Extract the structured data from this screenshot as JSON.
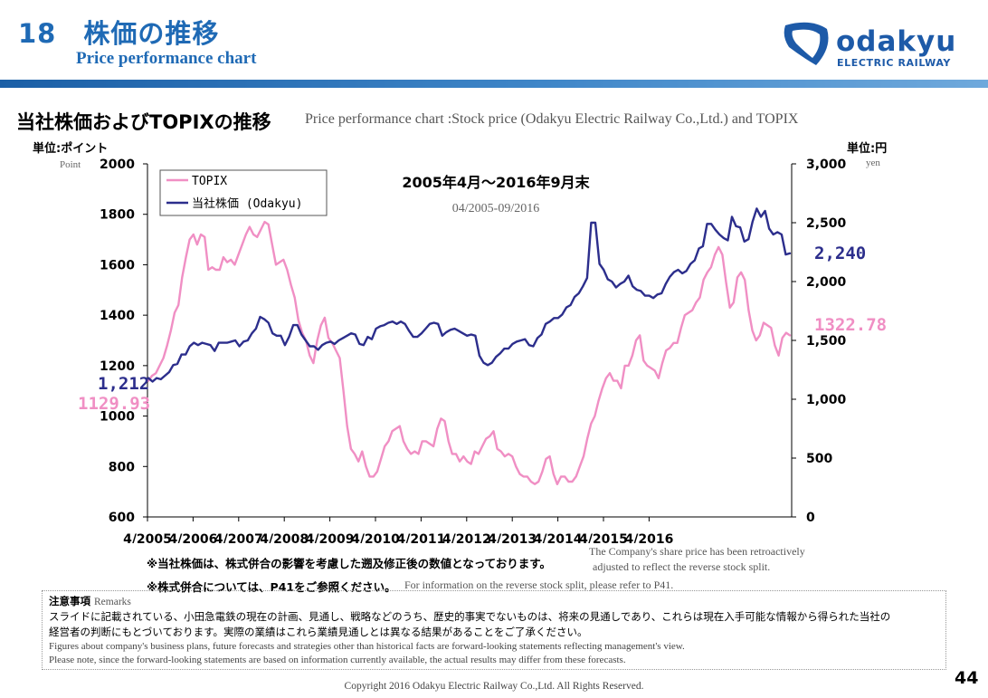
{
  "header": {
    "title": "18　株価の推移",
    "subtitle": "Price performance chart",
    "logo_word": "odakyu",
    "logo_sub": "ELECTRIC RAILWAY",
    "brand_color": "#1f6ab5"
  },
  "section": {
    "heading": "当社株価およびTOPIXの推移",
    "heading_en": "Price performance chart :Stock price (Odakyu Electric Railway Co.,Ltd.) and TOPIX",
    "left_unit_jp": "単位:ポイント",
    "left_unit_en": "Point",
    "right_unit_jp": "単位:円",
    "right_unit_en": "yen"
  },
  "chart_data": {
    "type": "line",
    "title": "2005年4月～2016年9月末",
    "subtitle": "04/2005-09/2016",
    "x_tick_labels": [
      "4/2005",
      "4/2006",
      "4/2007",
      "4/2008",
      "4/2009",
      "4/2010",
      "4/2011",
      "4/2012",
      "4/2013",
      "4/2014",
      "4/2015",
      "4/2016"
    ],
    "left_axis": {
      "label": "Point",
      "ylim": [
        600,
        2000
      ],
      "ticks": [
        "600",
        "800",
        "1000",
        "1200",
        "1400",
        "1600",
        "1800",
        "2000"
      ]
    },
    "right_axis": {
      "label": "yen",
      "ylim": [
        0,
        3000
      ],
      "ticks": [
        "0",
        "500",
        "1,000",
        "1,500",
        "2,000",
        "2,500",
        "3,000"
      ]
    },
    "legend": {
      "position": "top-left",
      "entries": [
        "TOPIX",
        "当社株価 (Odakyu)"
      ]
    },
    "series": [
      {
        "name": "TOPIX",
        "axis": "left",
        "color": "#f08fc4",
        "start_label": "1129.93",
        "end_label": "1322.78",
        "values": [
          1140,
          1160,
          1170,
          1200,
          1230,
          1280,
          1340,
          1410,
          1440,
          1550,
          1630,
          1700,
          1720,
          1680,
          1720,
          1710,
          1580,
          1590,
          1580,
          1580,
          1630,
          1610,
          1620,
          1600,
          1640,
          1680,
          1720,
          1750,
          1720,
          1710,
          1740,
          1770,
          1760,
          1680,
          1600,
          1610,
          1620,
          1580,
          1520,
          1470,
          1380,
          1330,
          1300,
          1240,
          1210,
          1300,
          1360,
          1390,
          1310,
          1290,
          1260,
          1230,
          1100,
          960,
          870,
          850,
          820,
          860,
          800,
          760,
          760,
          780,
          830,
          880,
          900,
          940,
          950,
          960,
          900,
          870,
          850,
          860,
          850,
          900,
          900,
          890,
          880,
          950,
          990,
          980,
          900,
          850,
          850,
          820,
          840,
          820,
          810,
          860,
          850,
          880,
          910,
          920,
          940,
          870,
          860,
          840,
          850,
          840,
          800,
          770,
          760,
          760,
          740,
          730,
          740,
          780,
          830,
          840,
          770,
          730,
          760,
          760,
          740,
          740,
          760,
          800,
          840,
          910,
          970,
          1000,
          1060,
          1110,
          1150,
          1170,
          1140,
          1140,
          1110,
          1200,
          1200,
          1240,
          1300,
          1320,
          1220,
          1200,
          1190,
          1180,
          1150,
          1210,
          1260,
          1270,
          1290,
          1290,
          1350,
          1400,
          1410,
          1420,
          1450,
          1470,
          1540,
          1570,
          1590,
          1640,
          1670,
          1640,
          1530,
          1430,
          1450,
          1550,
          1570,
          1540,
          1420,
          1340,
          1300,
          1320,
          1370,
          1360,
          1350,
          1280,
          1240,
          1310,
          1330,
          1320
        ]
      },
      {
        "name": "当社株価 (Odakyu)",
        "axis": "right",
        "color": "#2c2e8c",
        "start_label": "1,212",
        "end_label": "2,240",
        "values": [
          1180,
          1150,
          1180,
          1170,
          1200,
          1230,
          1290,
          1300,
          1380,
          1380,
          1450,
          1480,
          1460,
          1480,
          1470,
          1460,
          1410,
          1480,
          1480,
          1480,
          1490,
          1500,
          1450,
          1490,
          1500,
          1560,
          1600,
          1700,
          1680,
          1650,
          1560,
          1540,
          1540,
          1460,
          1530,
          1630,
          1630,
          1550,
          1500,
          1450,
          1450,
          1420,
          1460,
          1480,
          1490,
          1470,
          1500,
          1520,
          1540,
          1560,
          1550,
          1470,
          1460,
          1530,
          1510,
          1600,
          1620,
          1630,
          1650,
          1660,
          1640,
          1660,
          1640,
          1580,
          1530,
          1530,
          1560,
          1600,
          1640,
          1650,
          1640,
          1540,
          1570,
          1590,
          1600,
          1580,
          1560,
          1540,
          1550,
          1540,
          1370,
          1310,
          1290,
          1310,
          1360,
          1390,
          1430,
          1430,
          1470,
          1490,
          1500,
          1510,
          1460,
          1450,
          1520,
          1550,
          1640,
          1660,
          1690,
          1690,
          1720,
          1780,
          1800,
          1870,
          1900,
          1960,
          2030,
          2500,
          2500,
          2150,
          2100,
          2020,
          2000,
          1950,
          1980,
          2000,
          2050,
          1960,
          1930,
          1920,
          1880,
          1880,
          1860,
          1890,
          1900,
          1980,
          2040,
          2080,
          2100,
          2070,
          2090,
          2150,
          2180,
          2280,
          2300,
          2490,
          2490,
          2440,
          2400,
          2370,
          2350,
          2550,
          2470,
          2460,
          2340,
          2360,
          2510,
          2620,
          2550,
          2600,
          2450,
          2400,
          2420,
          2400,
          2230,
          2240
        ]
      }
    ]
  },
  "notes": {
    "note1_jp": "※当社株価は、株式併合の影響を考慮した遡及修正後の数値となっております。",
    "note1_en_line1": "The Company's share price has been retroactively",
    "note1_en_line2": "adjusted to reflect the reverse stock split.",
    "note2_jp": "※株式併合については、P41をご参照ください。",
    "note2_en": "For information on the reverse stock split, please refer to P41."
  },
  "remarks": {
    "title_jp": "注意事項",
    "title_en": "Remarks",
    "line1_jp": "スライドに記載されている、小田急電鉄の現在の計画、見通し、戦略などのうち、歴史的事実でないものは、将来の見通しであり、これらは現在入手可能な情報から得られた当社の",
    "line2_jp": "経営者の判断にもとづいております。実際の業績はこれら業績見通しとは異なる結果があることをご了承ください。",
    "line1_en": "Figures about company's business plans, future forecasts and strategies other than historical facts are forward-looking statements reflecting management's view.",
    "line2_en": "Please note, since the forward-looking statements are based on information currently available, the actual results may differ from these forecasts."
  },
  "footer": {
    "copyright": "Copyright 2016 Odakyu Electric Railway Co.,Ltd. All Rights Reserved.",
    "page_number": "44"
  }
}
